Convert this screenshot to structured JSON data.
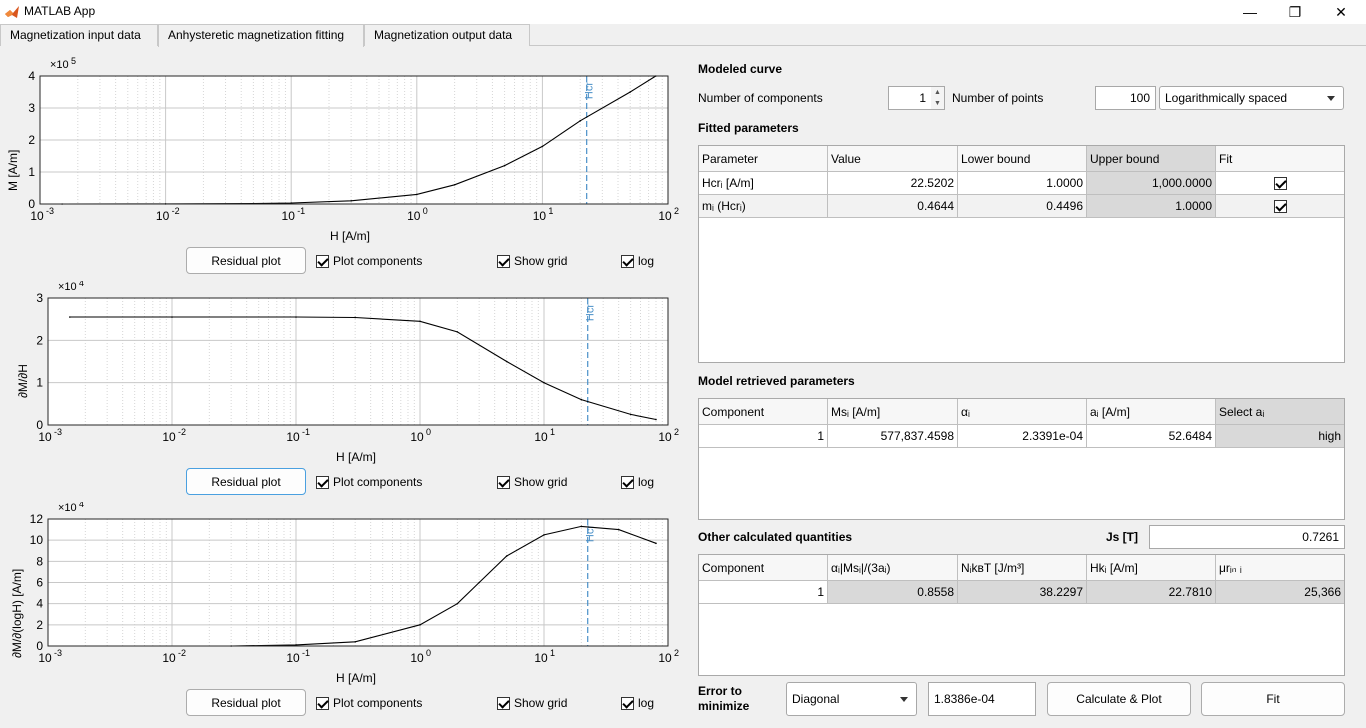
{
  "window": {
    "title": "MATLAB App",
    "minimize": "—",
    "restore": "❐",
    "close": "✕"
  },
  "tabs": [
    "Magnetization input data",
    "Anhysteretic magnetization fitting",
    "Magnetization output data"
  ],
  "plots": [
    {
      "id": "plot1",
      "ylabel": "M [A/m]",
      "xlabel": "H [A/m]",
      "exponent_base": "×10",
      "exponent_power": "5",
      "yticks": [
        "0",
        "1",
        "2",
        "3",
        "4"
      ],
      "xticks": [
        "10",
        "10",
        "10",
        "10",
        "10",
        "10"
      ],
      "xtick_powers": [
        "-3",
        "-2",
        "-1",
        "0",
        "1",
        "2"
      ],
      "hcr_label": "Hcr",
      "buttons": {
        "residual": "Residual plot",
        "components": "Plot components",
        "grid": "Show grid",
        "log": "log"
      }
    },
    {
      "id": "plot2",
      "ylabel": "∂M/∂H",
      "xlabel": "H [A/m]",
      "exponent_base": "×10",
      "exponent_power": "4",
      "yticks": [
        "0",
        "1",
        "2",
        "3"
      ],
      "xticks": [
        "10",
        "10",
        "10",
        "10",
        "10",
        "10"
      ],
      "xtick_powers": [
        "-3",
        "-2",
        "-1",
        "0",
        "1",
        "2"
      ],
      "hcr_label": "Hcr",
      "buttons": {
        "residual": "Residual plot",
        "components": "Plot components",
        "grid": "Show grid",
        "log": "log"
      }
    },
    {
      "id": "plot3",
      "ylabel": "∂M/∂(logH) [A/m]",
      "xlabel": "H [A/m]",
      "exponent_base": "×10",
      "exponent_power": "4",
      "yticks": [
        "0",
        "2",
        "4",
        "6",
        "8",
        "10",
        "12"
      ],
      "xticks": [
        "10",
        "10",
        "10",
        "10",
        "10",
        "10"
      ],
      "xtick_powers": [
        "-3",
        "-2",
        "-1",
        "0",
        "1",
        "2"
      ],
      "hcr_label": "Hcr",
      "buttons": {
        "residual": "Residual plot",
        "components": "Plot components",
        "grid": "Show grid",
        "log": "log"
      }
    }
  ],
  "chart_data": [
    {
      "type": "line",
      "xscale": "log",
      "xlim": [
        0.001,
        100
      ],
      "ylim": [
        0,
        400000
      ],
      "xlabel": "H [A/m]",
      "ylabel": "M [A/m]",
      "grid": true,
      "hcr_line_x": 22.52,
      "series": [
        {
          "x": [
            0.0015,
            0.01,
            0.05,
            0.1,
            0.3,
            1,
            2,
            5,
            10,
            20,
            50,
            80
          ],
          "y": [
            0,
            200,
            1500,
            3000,
            10000,
            30000,
            60000,
            120000,
            180000,
            260000,
            350000,
            400000
          ]
        }
      ]
    },
    {
      "type": "line",
      "xscale": "log",
      "xlim": [
        0.001,
        100
      ],
      "ylim": [
        0,
        30000
      ],
      "xlabel": "H [A/m]",
      "ylabel": "∂M/∂H",
      "grid": true,
      "hcr_line_x": 22.52,
      "series": [
        {
          "x": [
            0.0015,
            0.01,
            0.1,
            0.3,
            1,
            2,
            5,
            10,
            20,
            50,
            80
          ],
          "y": [
            25500,
            25500,
            25500,
            25400,
            24500,
            22000,
            15000,
            10000,
            6000,
            2500,
            1300
          ]
        }
      ]
    },
    {
      "type": "line",
      "xscale": "log",
      "xlim": [
        0.001,
        100
      ],
      "ylim": [
        0,
        120000
      ],
      "xlabel": "H [A/m]",
      "ylabel": "∂M/∂(logH) [A/m]",
      "grid": true,
      "hcr_line_x": 22.52,
      "series": [
        {
          "x": [
            0.03,
            0.1,
            0.3,
            1,
            2,
            3,
            5,
            10,
            20,
            40,
            80
          ],
          "y": [
            0,
            1000,
            4000,
            20000,
            40000,
            60000,
            85000,
            105000,
            113000,
            110000,
            97000
          ]
        }
      ]
    }
  ],
  "modeled_curve": {
    "title": "Modeled curve",
    "num_components_label": "Number of components",
    "num_components": "1",
    "num_points_label": "Number of points",
    "num_points": "100",
    "spacing": "Logarithmically spaced"
  },
  "fitted": {
    "title": "Fitted parameters",
    "headers": [
      "Parameter",
      "Value",
      "Lower bound",
      "Upper bound",
      "Fit"
    ],
    "rows": [
      {
        "param": "Hcrᵢ [A/m]",
        "value": "22.5202",
        "lower": "1.0000",
        "upper": "1,000.0000"
      },
      {
        "param": "mᵢ (Hcrᵢ)",
        "value": "0.4644",
        "lower": "0.4496",
        "upper": "1.0000"
      }
    ]
  },
  "retrieved": {
    "title": "Model retrieved parameters",
    "headers": [
      "Component",
      "Msᵢ [A/m]",
      "αᵢ",
      "aᵢ [A/m]",
      "Select aᵢ"
    ],
    "rows": [
      {
        "component": "1",
        "ms": "577,837.4598",
        "alpha": "2.3391e-04",
        "a": "52.6484",
        "select": "high"
      }
    ]
  },
  "other": {
    "title": "Other calculated quantities",
    "js_label": "Js [T]",
    "js_value": "0.7261",
    "headers": [
      "Component",
      "αᵢ|Msᵢ|/(3aᵢ)",
      "NᵢkʙT [J/m³]",
      "Hkᵢ [A/m]",
      "μrᵢₙ ᵢ"
    ],
    "rows": [
      {
        "component": "1",
        "c2": "0.8558",
        "c3": "38.2297",
        "c4": "22.7810",
        "c5": "25,366"
      }
    ]
  },
  "bottom": {
    "error_label": "Error to minimize",
    "error_type": "Diagonal",
    "error_value": "1.8386e-04",
    "calc_button": "Calculate & Plot",
    "fit_button": "Fit"
  },
  "colors": {
    "hcr_line": "#4a90c8",
    "curve": "#000000",
    "grid": "#bfbfbf"
  }
}
